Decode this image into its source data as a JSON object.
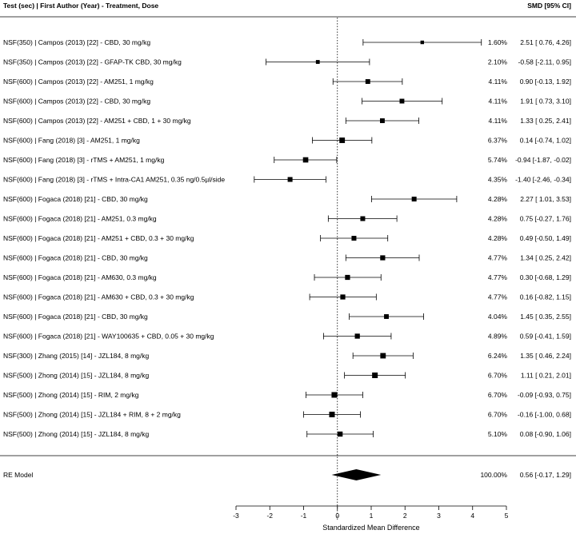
{
  "chart_data": {
    "type": "forest",
    "header_left": "Test (sec) | First Author (Year) - Treatment, Dose",
    "header_right": "SMD [95% CI]",
    "xlabel": "Standardized Mean Difference",
    "xlim": [
      -3,
      5
    ],
    "xticks": [
      "-3",
      "-2",
      "-1",
      "0",
      "1",
      "2",
      "3",
      "4",
      "5"
    ],
    "studies": [
      {
        "label": "NSF(350) | Campos (2013) [22] - CBD, 30 mg/kg",
        "weight": "1.60%",
        "ci_text": "2.51 [ 0.76,  4.26]",
        "est": 2.51,
        "lo": 0.76,
        "hi": 4.26,
        "w": 1.6
      },
      {
        "label": "NSF(350) | Campos (2013) [22] - GFAP-TK CBD, 30 mg/kg",
        "weight": "2.10%",
        "ci_text": "-0.58 [-2.11,  0.95]",
        "est": -0.58,
        "lo": -2.11,
        "hi": 0.95,
        "w": 2.1
      },
      {
        "label": "NSF(600) | Campos (2013) [22] - AM251, 1 mg/kg",
        "weight": "4.11%",
        "ci_text": "0.90 [-0.13,  1.92]",
        "est": 0.9,
        "lo": -0.13,
        "hi": 1.92,
        "w": 4.11
      },
      {
        "label": "NSF(600) | Campos (2013) [22] - CBD, 30 mg/kg",
        "weight": "4.11%",
        "ci_text": "1.91 [ 0.73,  3.10]",
        "est": 1.91,
        "lo": 0.73,
        "hi": 3.1,
        "w": 4.11
      },
      {
        "label": "NSF(600) | Campos (2013) [22] - AM251 + CBD, 1 + 30 mg/kg",
        "weight": "4.11%",
        "ci_text": "1.33 [ 0.25,  2.41]",
        "est": 1.33,
        "lo": 0.25,
        "hi": 2.41,
        "w": 4.11
      },
      {
        "label": "NSF(600) | Fang (2018) [3] - AM251, 1 mg/kg",
        "weight": "6.37%",
        "ci_text": "0.14 [-0.74,  1.02]",
        "est": 0.14,
        "lo": -0.74,
        "hi": 1.02,
        "w": 6.37
      },
      {
        "label": "NSF(600) | Fang (2018) [3] - rTMS + AM251, 1 mg/kg",
        "weight": "5.74%",
        "ci_text": "-0.94 [-1.87, -0.02]",
        "est": -0.94,
        "lo": -1.87,
        "hi": -0.02,
        "w": 5.74
      },
      {
        "label": "NSF(600) | Fang (2018) [3] - rTMS + Intra-CA1 AM251, 0.35 ng/0.5µl/side",
        "weight": "4.35%",
        "ci_text": "-1.40 [-2.46, -0.34]",
        "est": -1.4,
        "lo": -2.46,
        "hi": -0.34,
        "w": 4.35
      },
      {
        "label": "NSF(600) | Fogaca (2018) [21] - CBD, 30 mg/kg",
        "weight": "4.28%",
        "ci_text": "2.27 [ 1.01,  3.53]",
        "est": 2.27,
        "lo": 1.01,
        "hi": 3.53,
        "w": 4.28
      },
      {
        "label": "NSF(600) | Fogaca (2018) [21] - AM251, 0.3 mg/kg",
        "weight": "4.28%",
        "ci_text": "0.75 [-0.27,  1.76]",
        "est": 0.75,
        "lo": -0.27,
        "hi": 1.76,
        "w": 4.28
      },
      {
        "label": "NSF(600) | Fogaca (2018) [21] - AM251 + CBD, 0.3 + 30 mg/kg",
        "weight": "4.28%",
        "ci_text": "0.49 [-0.50,  1.49]",
        "est": 0.49,
        "lo": -0.5,
        "hi": 1.49,
        "w": 4.28
      },
      {
        "label": "NSF(600) | Fogaca (2018) [21] - CBD, 30 mg/kg",
        "weight": "4.77%",
        "ci_text": "1.34 [ 0.25,  2.42]",
        "est": 1.34,
        "lo": 0.25,
        "hi": 2.42,
        "w": 4.77
      },
      {
        "label": "NSF(600) | Fogaca (2018) [21] - AM630, 0.3 mg/kg",
        "weight": "4.77%",
        "ci_text": "0.30 [-0.68,  1.29]",
        "est": 0.3,
        "lo": -0.68,
        "hi": 1.29,
        "w": 4.77
      },
      {
        "label": "NSF(600) | Fogaca (2018) [21] - AM630 + CBD, 0.3 + 30 mg/kg",
        "weight": "4.77%",
        "ci_text": "0.16 [-0.82,  1.15]",
        "est": 0.16,
        "lo": -0.82,
        "hi": 1.15,
        "w": 4.77
      },
      {
        "label": "NSF(600) | Fogaca (2018) [21] - CBD, 30 mg/kg",
        "weight": "4.04%",
        "ci_text": "1.45 [ 0.35,  2.55]",
        "est": 1.45,
        "lo": 0.35,
        "hi": 2.55,
        "w": 4.04
      },
      {
        "label": "NSF(600) | Fogaca (2018) [21] - WAY100635 + CBD, 0.05 + 30 mg/kg",
        "weight": "4.89%",
        "ci_text": "0.59 [-0.41,  1.59]",
        "est": 0.59,
        "lo": -0.41,
        "hi": 1.59,
        "w": 4.89
      },
      {
        "label": "NSF(300) | Zhang (2015) [14] - JZL184, 8 mg/kg",
        "weight": "6.24%",
        "ci_text": "1.35 [ 0.46,  2.24]",
        "est": 1.35,
        "lo": 0.46,
        "hi": 2.24,
        "w": 6.24
      },
      {
        "label": "NSF(500) | Zhong (2014) [15] - JZL184, 8 mg/kg",
        "weight": "6.70%",
        "ci_text": "1.11 [ 0.21,  2.01]",
        "est": 1.11,
        "lo": 0.21,
        "hi": 2.01,
        "w": 6.7
      },
      {
        "label": "NSF(500) | Zhong (2014) [15] - RIM, 2 mg/kg",
        "weight": "6.70%",
        "ci_text": "-0.09 [-0.93,  0.75]",
        "est": -0.09,
        "lo": -0.93,
        "hi": 0.75,
        "w": 6.7
      },
      {
        "label": "NSF(500) | Zhong (2014) [15] - JZL184 + RIM, 8 + 2 mg/kg",
        "weight": "6.70%",
        "ci_text": "-0.16 [-1.00,  0.68]",
        "est": -0.16,
        "lo": -1.0,
        "hi": 0.68,
        "w": 6.7
      },
      {
        "label": "NSF(500) | Zhong (2014) [15] - JZL184, 8 mg/kg",
        "weight": "5.10%",
        "ci_text": "0.08 [-0.90,  1.06]",
        "est": 0.08,
        "lo": -0.9,
        "hi": 1.06,
        "w": 5.1
      }
    ],
    "summary": {
      "label": "RE Model",
      "weight": "100.00%",
      "ci_text": "0.56 [-0.17,  1.29]",
      "est": 0.56,
      "lo": -0.17,
      "hi": 1.29
    },
    "reference_line": 0
  }
}
